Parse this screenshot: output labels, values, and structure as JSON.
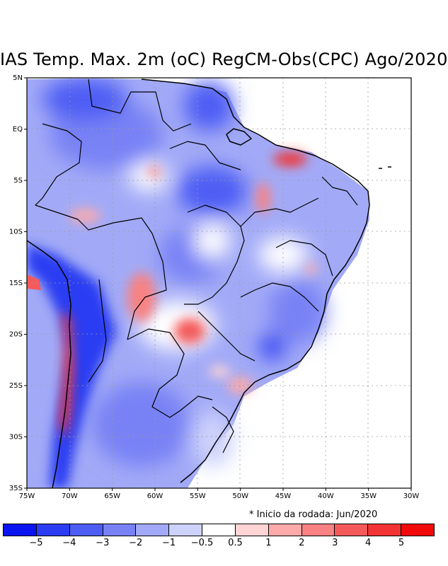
{
  "title": "IAS Temp. Max. 2m (oC) RegCM-Obs(CPC) Ago/2020",
  "note": "* Inicio da rodada: Jun/2020",
  "map": {
    "lon_range": [
      -75,
      -30
    ],
    "lat_range": [
      -35,
      5
    ],
    "x_ticks": [
      {
        "lon": -75,
        "label": "75W"
      },
      {
        "lon": -70,
        "label": "70W"
      },
      {
        "lon": -65,
        "label": "65W"
      },
      {
        "lon": -60,
        "label": "60W"
      },
      {
        "lon": -55,
        "label": "55W"
      },
      {
        "lon": -50,
        "label": "50W"
      },
      {
        "lon": -45,
        "label": "45W"
      },
      {
        "lon": -40,
        "label": "40W"
      },
      {
        "lon": -35,
        "label": "35W"
      },
      {
        "lon": -30,
        "label": "30W"
      }
    ],
    "y_ticks": [
      {
        "lat": 5,
        "label": "5N"
      },
      {
        "lat": 0,
        "label": "EQ"
      },
      {
        "lat": -5,
        "label": "5S"
      },
      {
        "lat": -10,
        "label": "10S"
      },
      {
        "lat": -15,
        "label": "15S"
      },
      {
        "lat": -20,
        "label": "20S"
      },
      {
        "lat": -25,
        "label": "25S"
      },
      {
        "lat": -30,
        "label": "30S"
      },
      {
        "lat": -35,
        "label": "35S"
      }
    ]
  },
  "colorbar": {
    "colors": [
      "#0a14f0",
      "#2c3cf2",
      "#4d5df4",
      "#7882f5",
      "#a2aaf7",
      "#cdd2fb",
      "#ffffff",
      "#fed4d4",
      "#fcaaaa",
      "#f98282",
      "#f55a5a",
      "#f23434",
      "#f20a0a"
    ],
    "labels": [
      "−5",
      "−4",
      "−3",
      "−2",
      "−1",
      "−0.5",
      "0.5",
      "1",
      "2",
      "3",
      "4",
      "5"
    ]
  }
}
